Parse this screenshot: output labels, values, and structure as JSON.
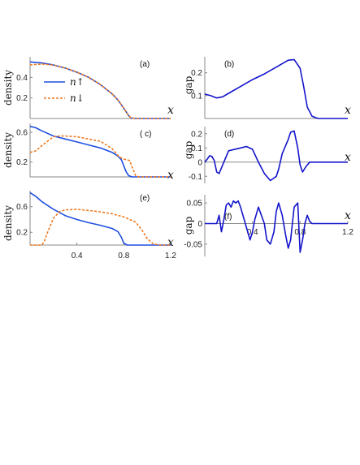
{
  "colors": {
    "up": "#1f4fe0",
    "down": "#f07a1e",
    "gap": "#1414cc",
    "axis": "#888888"
  },
  "legend": {
    "up_label": "n↑",
    "down_label": "n↓"
  },
  "chart_data": [
    {
      "id": "a",
      "type": "line",
      "panel_label": "(a)",
      "ylabel": "density",
      "xlabel": "x",
      "xlim": [
        0,
        1.2
      ],
      "ylim": [
        0,
        0.6
      ],
      "yticks": [
        "0.2",
        "0.4"
      ],
      "xticks": [],
      "series": [
        {
          "name": "n↑",
          "style": "solid",
          "x": [
            0,
            0.1,
            0.2,
            0.3,
            0.4,
            0.5,
            0.6,
            0.7,
            0.75,
            0.8,
            0.84,
            0.86,
            0.9,
            1.0,
            1.2
          ],
          "y": [
            0.55,
            0.54,
            0.52,
            0.49,
            0.45,
            0.4,
            0.33,
            0.24,
            0.18,
            0.1,
            0.03,
            0.005,
            0,
            0,
            0
          ]
        },
        {
          "name": "n↓",
          "style": "dashed",
          "x": [
            0,
            0.1,
            0.2,
            0.3,
            0.4,
            0.5,
            0.6,
            0.7,
            0.75,
            0.8,
            0.84,
            0.86,
            0.9,
            1.0,
            1.2
          ],
          "y": [
            0.52,
            0.53,
            0.52,
            0.49,
            0.45,
            0.4,
            0.33,
            0.24,
            0.18,
            0.1,
            0.03,
            0.005,
            0,
            0,
            0
          ]
        }
      ]
    },
    {
      "id": "b",
      "type": "line",
      "panel_label": "(b)",
      "ylabel": "gap",
      "xlabel": "x",
      "xlim": [
        0,
        1.2
      ],
      "ylim": [
        0,
        0.27
      ],
      "yticks": [
        "0.1",
        "0.2"
      ],
      "xticks": [],
      "series": [
        {
          "style": "solid",
          "x": [
            0,
            0.05,
            0.1,
            0.15,
            0.2,
            0.3,
            0.4,
            0.5,
            0.6,
            0.7,
            0.75,
            0.8,
            0.83,
            0.86,
            0.9,
            0.95,
            1.0,
            1.2
          ],
          "y": [
            0.107,
            0.1,
            0.09,
            0.095,
            0.11,
            0.14,
            0.17,
            0.195,
            0.225,
            0.255,
            0.258,
            0.22,
            0.14,
            0.05,
            0.01,
            0,
            0,
            0
          ]
        }
      ]
    },
    {
      "id": "c",
      "type": "line",
      "panel_label": "( c)",
      "ylabel": "density",
      "xlabel": "x",
      "xlim": [
        0,
        1.2
      ],
      "ylim": [
        0,
        0.72
      ],
      "yticks": [
        "0.2",
        "0.6"
      ],
      "xticks": [],
      "series": [
        {
          "name": "n↑",
          "style": "solid",
          "x": [
            0,
            0.05,
            0.1,
            0.2,
            0.3,
            0.4,
            0.5,
            0.6,
            0.7,
            0.75,
            0.78,
            0.8,
            0.82,
            0.84,
            0.87,
            0.9,
            1.0,
            1.2
          ],
          "y": [
            0.68,
            0.66,
            0.62,
            0.55,
            0.51,
            0.47,
            0.43,
            0.39,
            0.33,
            0.28,
            0.23,
            0.15,
            0.07,
            0.02,
            0,
            0,
            0,
            0
          ]
        },
        {
          "name": "n↓",
          "style": "dashed",
          "x": [
            0,
            0.05,
            0.1,
            0.15,
            0.2,
            0.25,
            0.3,
            0.4,
            0.5,
            0.6,
            0.7,
            0.76,
            0.8,
            0.85,
            0.88,
            0.9,
            0.93,
            1.0,
            1.2
          ],
          "y": [
            0.33,
            0.35,
            0.42,
            0.48,
            0.54,
            0.55,
            0.55,
            0.54,
            0.51,
            0.48,
            0.38,
            0.27,
            0.24,
            0.22,
            0.1,
            0.02,
            0,
            0,
            0
          ]
        }
      ]
    },
    {
      "id": "d",
      "type": "line",
      "panel_label": "(d)",
      "ylabel": "gap",
      "xlabel": "x",
      "xlim": [
        0,
        1.2
      ],
      "ylim": [
        -0.15,
        0.25
      ],
      "yticks": [
        "-0.1",
        "0",
        "0.1",
        "0.2"
      ],
      "xticks": [],
      "series": [
        {
          "style": "solid",
          "x": [
            0,
            0.02,
            0.04,
            0.06,
            0.08,
            0.1,
            0.12,
            0.15,
            0.2,
            0.3,
            0.35,
            0.4,
            0.45,
            0.5,
            0.55,
            0.6,
            0.62,
            0.65,
            0.7,
            0.72,
            0.75,
            0.78,
            0.8,
            0.82,
            0.85,
            0.88,
            0.9,
            0.95,
            1.0,
            1.2
          ],
          "y": [
            0,
            0.02,
            0.045,
            0.04,
            0.01,
            -0.07,
            -0.08,
            -0.02,
            0.08,
            0.1,
            0.11,
            0.09,
            0.0,
            -0.08,
            -0.13,
            -0.1,
            -0.05,
            0.06,
            0.16,
            0.21,
            0.22,
            0.1,
            -0.02,
            -0.07,
            -0.03,
            0,
            0,
            0,
            0,
            0
          ]
        }
      ]
    },
    {
      "id": "e",
      "type": "line",
      "panel_label": "(e)",
      "ylabel": "density",
      "xlabel": "x",
      "xlim": [
        0,
        1.2
      ],
      "ylim": [
        0,
        0.85
      ],
      "yticks": [
        "0.2",
        "0.6"
      ],
      "xticks": [
        "0.4",
        "0.8",
        "1.2"
      ],
      "series": [
        {
          "name": "n↑",
          "style": "solid",
          "x": [
            0,
            0.05,
            0.1,
            0.2,
            0.3,
            0.4,
            0.5,
            0.6,
            0.7,
            0.75,
            0.78,
            0.8,
            0.83,
            0.9,
            1.0,
            1.2
          ],
          "y": [
            0.82,
            0.76,
            0.68,
            0.56,
            0.46,
            0.4,
            0.35,
            0.31,
            0.26,
            0.21,
            0.12,
            0.03,
            0,
            0,
            0,
            0
          ]
        },
        {
          "name": "n↓",
          "style": "dashed",
          "x": [
            0,
            0.1,
            0.12,
            0.15,
            0.2,
            0.25,
            0.3,
            0.4,
            0.5,
            0.6,
            0.7,
            0.8,
            0.9,
            0.95,
            1.0,
            1.05,
            1.1,
            1.2
          ],
          "y": [
            0,
            0,
            0.05,
            0.2,
            0.42,
            0.52,
            0.55,
            0.56,
            0.54,
            0.52,
            0.49,
            0.44,
            0.36,
            0.25,
            0.1,
            0.02,
            0,
            0
          ]
        }
      ]
    },
    {
      "id": "f",
      "type": "line",
      "panel_label": "(f)",
      "ylabel": "gap",
      "xlabel": "x",
      "xlim": [
        0,
        1.2
      ],
      "ylim": [
        -0.08,
        0.07
      ],
      "yticks": [
        "-0.05",
        "0",
        "0.05"
      ],
      "xticks": [
        "0.4",
        "0.8",
        "1.2"
      ],
      "series": [
        {
          "style": "solid",
          "x": [
            0,
            0.1,
            0.12,
            0.14,
            0.16,
            0.18,
            0.2,
            0.22,
            0.24,
            0.26,
            0.28,
            0.3,
            0.33,
            0.36,
            0.38,
            0.4,
            0.42,
            0.45,
            0.5,
            0.52,
            0.55,
            0.58,
            0.6,
            0.62,
            0.65,
            0.68,
            0.7,
            0.72,
            0.75,
            0.78,
            0.8,
            0.82,
            0.84,
            0.86,
            0.88,
            0.9,
            0.95,
            1.0,
            1.2
          ],
          "y": [
            0,
            0,
            0.02,
            -0.02,
            0.01,
            0.045,
            0.05,
            0.04,
            0.055,
            0.05,
            0.055,
            0.04,
            0.01,
            -0.02,
            -0.04,
            -0.02,
            0.01,
            0.04,
            0.0,
            -0.04,
            -0.05,
            -0.02,
            0.03,
            0.05,
            0.02,
            -0.03,
            -0.06,
            -0.04,
            0.04,
            0.05,
            -0.07,
            -0.04,
            0.0,
            0.02,
            0.005,
            0,
            0,
            0,
            0
          ]
        }
      ]
    }
  ]
}
